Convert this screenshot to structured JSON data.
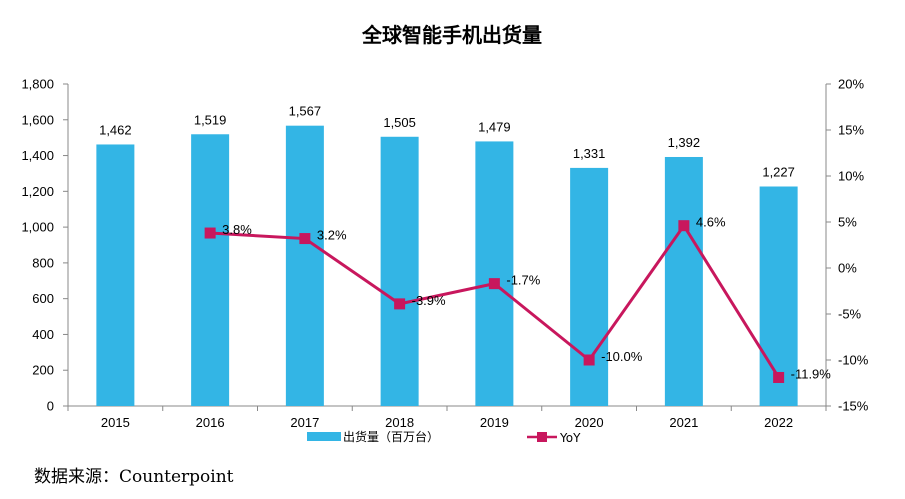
{
  "chart_data": {
    "type": "bar",
    "title": "全球智能手机出货量",
    "categories": [
      "2015",
      "2016",
      "2017",
      "2018",
      "2019",
      "2020",
      "2021",
      "2022"
    ],
    "series": [
      {
        "name": "出货量（百万台）",
        "type": "bar",
        "axis": "left",
        "color": "#33b5e5",
        "values": [
          1462,
          1519,
          1567,
          1505,
          1479,
          1331,
          1392,
          1227
        ],
        "labels": [
          "1,462",
          "1,519",
          "1,567",
          "1,505",
          "1,479",
          "1,331",
          "1,392",
          "1,227"
        ]
      },
      {
        "name": "YoY",
        "type": "line",
        "axis": "right",
        "color": "#c8175d",
        "values": [
          null,
          3.8,
          3.2,
          -3.9,
          -1.7,
          -10.0,
          4.6,
          -11.9
        ],
        "labels": [
          "",
          "3.8%",
          "3.2%",
          "-3.9%",
          "-1.7%",
          "-10.0%",
          "4.6%",
          "-11.9%"
        ]
      }
    ],
    "ylim_left": [
      0,
      1800
    ],
    "yticks_left": [
      "0",
      "200",
      "400",
      "600",
      "800",
      "1,000",
      "1,200",
      "1,400",
      "1,600",
      "1,800"
    ],
    "ylim_right": [
      -15,
      20
    ],
    "yticks_right": [
      "-15%",
      "-10%",
      "-5%",
      "0%",
      "5%",
      "10%",
      "15%",
      "20%"
    ],
    "legend_position": "bottom",
    "grid": false
  },
  "source": "数据来源：Counterpoint"
}
